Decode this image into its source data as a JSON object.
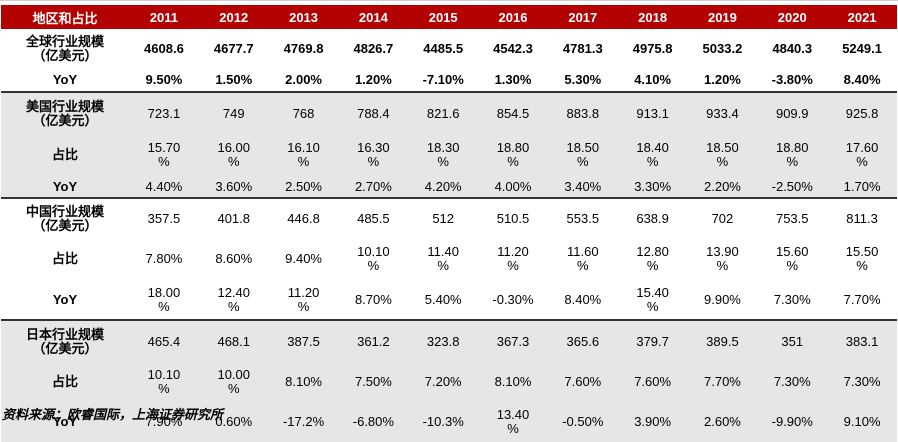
{
  "table": {
    "header": [
      "地区和占比",
      "2011",
      "2012",
      "2013",
      "2014",
      "2015",
      "2016",
      "2017",
      "2018",
      "2019",
      "2020",
      "2021"
    ],
    "groups": [
      {
        "rows": [
          {
            "label": "全球行业规模\n（亿美元）",
            "values": [
              "4608.6",
              "4677.7",
              "4769.8",
              "4826.7",
              "4485.5",
              "4542.3",
              "4781.3",
              "4975.8",
              "5033.2",
              "4840.3",
              "5249.1"
            ]
          },
          {
            "label": "YoY",
            "values": [
              "9.50%",
              "1.50%",
              "2.00%",
              "1.20%",
              "-7.10%",
              "1.30%",
              "5.30%",
              "4.10%",
              "1.20%",
              "-3.80%",
              "8.40%"
            ]
          }
        ]
      },
      {
        "rows": [
          {
            "label": "美国行业规模\n（亿美元）",
            "values": [
              "723.1",
              "749",
              "768",
              "788.4",
              "821.6",
              "854.5",
              "883.8",
              "913.1",
              "933.4",
              "909.9",
              "925.8"
            ]
          },
          {
            "label": "占比",
            "values": [
              "15.70\n%",
              "16.00\n%",
              "16.10\n%",
              "16.30\n%",
              "18.30\n%",
              "18.80\n%",
              "18.50\n%",
              "18.40\n%",
              "18.50\n%",
              "18.80\n%",
              "17.60\n%"
            ]
          },
          {
            "label": "YoY",
            "values": [
              "4.40%",
              "3.60%",
              "2.50%",
              "2.70%",
              "4.20%",
              "4.00%",
              "3.40%",
              "3.30%",
              "2.20%",
              "-2.50%",
              "1.70%"
            ]
          }
        ]
      },
      {
        "rows": [
          {
            "label": "中国行业规模\n（亿美元）",
            "values": [
              "357.5",
              "401.8",
              "446.8",
              "485.5",
              "512",
              "510.5",
              "553.5",
              "638.9",
              "702",
              "753.5",
              "811.3"
            ]
          },
          {
            "label": "占比",
            "values": [
              "7.80%",
              "8.60%",
              "9.40%",
              "10.10\n%",
              "11.40\n%",
              "11.20\n%",
              "11.60\n%",
              "12.80\n%",
              "13.90\n%",
              "15.60\n%",
              "15.50\n%"
            ]
          },
          {
            "label": "YoY",
            "values": [
              "18.00\n%",
              "12.40\n%",
              "11.20\n%",
              "8.70%",
              "5.40%",
              "-0.30%",
              "8.40%",
              "15.40\n%",
              "9.90%",
              "7.30%",
              "7.70%"
            ]
          }
        ]
      },
      {
        "rows": [
          {
            "label": "日本行业规模\n（亿美元）",
            "values": [
              "465.4",
              "468.1",
              "387.5",
              "361.2",
              "323.8",
              "367.3",
              "365.6",
              "379.7",
              "389.5",
              "351",
              "383.1"
            ]
          },
          {
            "label": "占比",
            "values": [
              "10.10\n%",
              "10.00\n%",
              "8.10%",
              "7.50%",
              "7.20%",
              "8.10%",
              "7.60%",
              "7.60%",
              "7.70%",
              "7.30%",
              "7.30%"
            ]
          },
          {
            "label": "YoY",
            "values": [
              "7.90%",
              "0.60%",
              "-17.2%",
              "-6.80%",
              "-10.3%",
              "13.40\n%",
              "-0.50%",
              "3.90%",
              "2.60%",
              "-9.90%",
              "9.10%"
            ]
          }
        ]
      }
    ]
  },
  "source": "资料来源：欧睿国际，上海证券研究所",
  "colors": {
    "header_bg": "#b30000",
    "header_text": "#ffffff",
    "band": "#e6e6e6",
    "rule": "#333333"
  }
}
